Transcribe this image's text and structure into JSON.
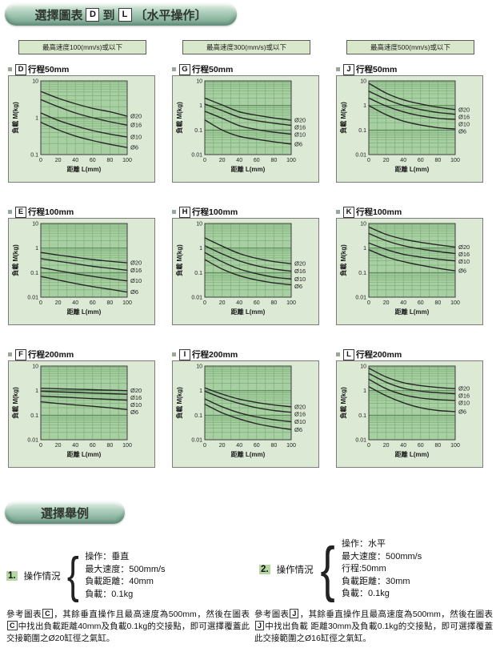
{
  "header": {
    "prefix": "選擇圖表",
    "box1": "D",
    "middle": "到",
    "box2": "L",
    "suffix": "〔水平操作〕"
  },
  "columns": [
    {
      "speed_label": "最高速度100(mm/s)或以下"
    },
    {
      "speed_label": "最高速度300(mm/s)或以下"
    },
    {
      "speed_label": "最高速度500(mm/s)或以下"
    }
  ],
  "chart_data": [
    {
      "id": "D",
      "title": "行程50mm",
      "type": "line",
      "xlabel": "距離  L(mm)",
      "ylabel": "負載  M(kg)",
      "yscale": "log",
      "xlim": [
        0,
        100
      ],
      "ylim": [
        0.1,
        10
      ],
      "xticks": [
        0,
        20,
        40,
        60,
        80,
        100
      ],
      "ytick_labels": [
        "10",
        "1",
        "0.1"
      ],
      "x": [
        0,
        20,
        40,
        60,
        80,
        100
      ],
      "series": [
        {
          "name": "Ø20",
          "values": [
            5.2,
            3.4,
            2.4,
            1.8,
            1.45,
            1.1
          ]
        },
        {
          "name": "Ø16",
          "values": [
            3.1,
            2.0,
            1.35,
            1.0,
            0.78,
            0.63
          ]
        },
        {
          "name": "Ø10",
          "values": [
            1.35,
            0.85,
            0.6,
            0.45,
            0.36,
            0.3
          ]
        },
        {
          "name": "Ø6",
          "values": [
            0.75,
            0.47,
            0.32,
            0.24,
            0.19,
            0.155
          ]
        }
      ]
    },
    {
      "id": "G",
      "title": "行程50mm",
      "type": "line",
      "xlabel": "距離  L(mm)",
      "ylabel": "負載  M(kg)",
      "yscale": "log",
      "xlim": [
        0,
        100
      ],
      "ylim": [
        0.01,
        10
      ],
      "xticks": [
        0,
        20,
        40,
        60,
        80,
        100
      ],
      "ytick_labels": [
        "10",
        "1",
        "0.1",
        "0.01"
      ],
      "x": [
        0,
        20,
        40,
        60,
        80,
        100
      ],
      "series": [
        {
          "name": "Ø20",
          "values": [
            2.0,
            1.05,
            0.55,
            0.4,
            0.31,
            0.25
          ]
        },
        {
          "name": "Ø16",
          "values": [
            1.15,
            0.62,
            0.33,
            0.24,
            0.19,
            0.155
          ]
        },
        {
          "name": "Ø10",
          "values": [
            0.58,
            0.3,
            0.15,
            0.105,
            0.082,
            0.068
          ]
        },
        {
          "name": "Ø6",
          "values": [
            0.26,
            0.1,
            0.055,
            0.042,
            0.033,
            0.027
          ]
        }
      ]
    },
    {
      "id": "J",
      "title": "行程50mm",
      "type": "line",
      "xlabel": "距離  L(mm)",
      "ylabel": "負載  M(kg)",
      "yscale": "log",
      "xlim": [
        0,
        100
      ],
      "ylim": [
        0.01,
        10
      ],
      "xticks": [
        0,
        20,
        40,
        60,
        80,
        100
      ],
      "ytick_labels": [
        "10",
        "1",
        "0.1",
        "0.01"
      ],
      "x": [
        0,
        20,
        40,
        60,
        80,
        100
      ],
      "series": [
        {
          "name": "Ø20",
          "values": [
            8.0,
            3.2,
            1.7,
            1.15,
            0.85,
            0.68
          ]
        },
        {
          "name": "Ø16",
          "values": [
            3.8,
            1.8,
            1.0,
            0.68,
            0.52,
            0.44
          ]
        },
        {
          "name": "Ø10",
          "values": [
            2.0,
            0.95,
            0.55,
            0.38,
            0.3,
            0.27
          ]
        },
        {
          "name": "Ø6",
          "values": [
            1.0,
            0.42,
            0.23,
            0.16,
            0.125,
            0.11
          ]
        }
      ]
    },
    {
      "id": "E",
      "title": "行程100mm",
      "type": "line",
      "xlabel": "距離  L(mm)",
      "ylabel": "負載  M(kg)",
      "yscale": "log",
      "xlim": [
        0,
        100
      ],
      "ylim": [
        0.01,
        10
      ],
      "xticks": [
        0,
        20,
        40,
        60,
        80,
        100
      ],
      "ytick_labels": [
        "10",
        "1",
        "0.1",
        "0.01"
      ],
      "x": [
        0,
        20,
        40,
        60,
        80,
        100
      ],
      "series": [
        {
          "name": "Ø20",
          "values": [
            0.66,
            0.52,
            0.42,
            0.34,
            0.29,
            0.25
          ]
        },
        {
          "name": "Ø16",
          "values": [
            0.37,
            0.29,
            0.23,
            0.18,
            0.15,
            0.125
          ]
        },
        {
          "name": "Ø10",
          "values": [
            0.16,
            0.12,
            0.09,
            0.07,
            0.056,
            0.046
          ]
        },
        {
          "name": "Ø6",
          "values": [
            0.07,
            0.05,
            0.036,
            0.027,
            0.021,
            0.016
          ]
        }
      ]
    },
    {
      "id": "H",
      "title": "行程100mm",
      "type": "line",
      "xlabel": "距離  L(mm)",
      "ylabel": "負載  M(kg)",
      "yscale": "log",
      "xlim": [
        0,
        100
      ],
      "ylim": [
        0.01,
        10
      ],
      "xticks": [
        0,
        20,
        40,
        60,
        80,
        100
      ],
      "ytick_labels": [
        "10",
        "1",
        "0.1",
        "0.01"
      ],
      "x": [
        0,
        20,
        40,
        60,
        80,
        100
      ],
      "series": [
        {
          "name": "Ø20",
          "values": [
            2.6,
            1.2,
            0.6,
            0.38,
            0.28,
            0.23
          ]
        },
        {
          "name": "Ø16",
          "values": [
            1.25,
            0.58,
            0.3,
            0.19,
            0.14,
            0.115
          ]
        },
        {
          "name": "Ø10",
          "values": [
            0.66,
            0.28,
            0.14,
            0.09,
            0.065,
            0.055
          ]
        },
        {
          "name": "Ø6",
          "values": [
            0.34,
            0.14,
            0.075,
            0.05,
            0.038,
            0.032
          ]
        }
      ]
    },
    {
      "id": "K",
      "title": "行程100mm",
      "type": "line",
      "xlabel": "距離  L(mm)",
      "ylabel": "負載  M(kg)",
      "yscale": "log",
      "xlim": [
        0,
        100
      ],
      "ylim": [
        0.01,
        10
      ],
      "xticks": [
        0,
        20,
        40,
        60,
        80,
        100
      ],
      "ytick_labels": [
        "10",
        "1",
        "0.1",
        "0.01"
      ],
      "x": [
        0,
        20,
        40,
        60,
        80,
        100
      ],
      "series": [
        {
          "name": "Ø20",
          "values": [
            7.2,
            3.6,
            2.3,
            1.7,
            1.35,
            1.1
          ]
        },
        {
          "name": "Ø16",
          "values": [
            3.9,
            2.0,
            1.25,
            0.92,
            0.72,
            0.6
          ]
        },
        {
          "name": "Ø10",
          "values": [
            1.6,
            0.88,
            0.56,
            0.43,
            0.35,
            0.3
          ]
        },
        {
          "name": "Ø6",
          "values": [
            0.85,
            0.44,
            0.28,
            0.2,
            0.15,
            0.118
          ]
        }
      ]
    },
    {
      "id": "F",
      "title": "行程200mm",
      "type": "line",
      "xlabel": "距離  L(mm)",
      "ylabel": "負載  M(kg)",
      "yscale": "log",
      "xlim": [
        0,
        100
      ],
      "ylim": [
        0.01,
        10
      ],
      "xticks": [
        0,
        20,
        40,
        60,
        80,
        100
      ],
      "ytick_labels": [
        "10",
        "1",
        "0.1",
        "0.01"
      ],
      "x": [
        0,
        20,
        40,
        60,
        80,
        100
      ],
      "series": [
        {
          "name": "Ø20",
          "values": [
            1.25,
            1.19,
            1.14,
            1.09,
            1.04,
            1.0
          ]
        },
        {
          "name": "Ø16",
          "values": [
            0.95,
            0.89,
            0.84,
            0.79,
            0.75,
            0.71
          ]
        },
        {
          "name": "Ø10",
          "values": [
            0.6,
            0.55,
            0.51,
            0.47,
            0.44,
            0.41
          ]
        },
        {
          "name": "Ø6",
          "values": [
            0.35,
            0.3,
            0.26,
            0.23,
            0.2,
            0.17
          ]
        }
      ]
    },
    {
      "id": "I",
      "title": "行程200mm",
      "type": "line",
      "xlabel": "距離  L(mm)",
      "ylabel": "負載  M(kg)",
      "yscale": "log",
      "xlim": [
        0,
        100
      ],
      "ylim": [
        0.01,
        10
      ],
      "xticks": [
        0,
        20,
        40,
        60,
        80,
        100
      ],
      "ytick_labels": [
        "10",
        "1",
        "0.1",
        "0.01"
      ],
      "x": [
        0,
        20,
        40,
        60,
        80,
        100
      ],
      "series": [
        {
          "name": "Ø20",
          "values": [
            1.3,
            0.72,
            0.45,
            0.33,
            0.26,
            0.22
          ]
        },
        {
          "name": "Ø16",
          "values": [
            0.95,
            0.5,
            0.3,
            0.2,
            0.155,
            0.13
          ]
        },
        {
          "name": "Ø10",
          "values": [
            0.46,
            0.22,
            0.125,
            0.085,
            0.065,
            0.054
          ]
        },
        {
          "name": "Ø6",
          "values": [
            0.28,
            0.125,
            0.07,
            0.045,
            0.033,
            0.026
          ]
        }
      ]
    },
    {
      "id": "L",
      "title": "行程200mm",
      "type": "line",
      "xlabel": "距離  L(mm)",
      "ylabel": "負載  M(kg)",
      "yscale": "log",
      "xlim": [
        0,
        100
      ],
      "ylim": [
        0.01,
        10
      ],
      "xticks": [
        0,
        20,
        40,
        60,
        80,
        100
      ],
      "ytick_labels": [
        "10",
        "1",
        "0.1",
        "0.01"
      ],
      "x": [
        0,
        20,
        40,
        60,
        80,
        100
      ],
      "series": [
        {
          "name": "Ø20",
          "values": [
            8.2,
            3.6,
            2.1,
            1.6,
            1.35,
            1.2
          ]
        },
        {
          "name": "Ø16",
          "values": [
            5.0,
            2.2,
            1.25,
            0.95,
            0.82,
            0.75
          ]
        },
        {
          "name": "Ø10",
          "values": [
            2.9,
            1.2,
            0.68,
            0.5,
            0.43,
            0.4
          ]
        },
        {
          "name": "Ø6",
          "values": [
            1.45,
            0.62,
            0.32,
            0.2,
            0.155,
            0.14
          ]
        }
      ]
    }
  ],
  "example_section": {
    "title": "選擇舉例"
  },
  "examples": [
    {
      "num": "1.",
      "label": "操作情況",
      "lines": [
        "操作：垂直",
        "最大速度：500mm/s",
        "負載距離：40mm",
        "負載：0.1kg"
      ]
    },
    {
      "num": "2.",
      "label": "操作情況",
      "lines": [
        "操作：水平",
        "最大速度：500mm/s",
        "行程:50mm",
        "負載距離：30mm",
        "負載：0.1kg"
      ]
    }
  ],
  "paragraphs": [
    {
      "parts": [
        {
          "text": "參考圖表"
        },
        {
          "text": "C",
          "boxed": true
        },
        {
          "text": "，其餘垂直操作且最高速度為500mm，然後在圖表"
        },
        {
          "text": "C",
          "boxed": true
        },
        {
          "text": "中找出負載距離40mm及負載0.1kg的交接點，即可選擇覆蓋此交接範圍之Ø20缸徑之氣缸。"
        }
      ]
    },
    {
      "parts": [
        {
          "text": "參考圖表"
        },
        {
          "text": "J",
          "boxed": true
        },
        {
          "text": "，其餘垂直操作且最高速度為500mm，然後在圖表"
        },
        {
          "text": "J",
          "boxed": true
        },
        {
          "text": "中找出負載 距離30mm及負載0.1kg的交接點，即可選擇覆蓋此交接範圍之Ø16缸徑之氣缸。"
        }
      ]
    }
  ],
  "colors": {
    "pill_green": "#9cc4ae",
    "speed_box_bg": "#d9e8cb",
    "chart_box_bg": "#dcead5",
    "plot_bg": "#a7cfa1",
    "grid_minor": "#78a976",
    "grid_major": "#4e7d4c",
    "curve": "#262626",
    "badge_bg": "#b5d8a3"
  }
}
